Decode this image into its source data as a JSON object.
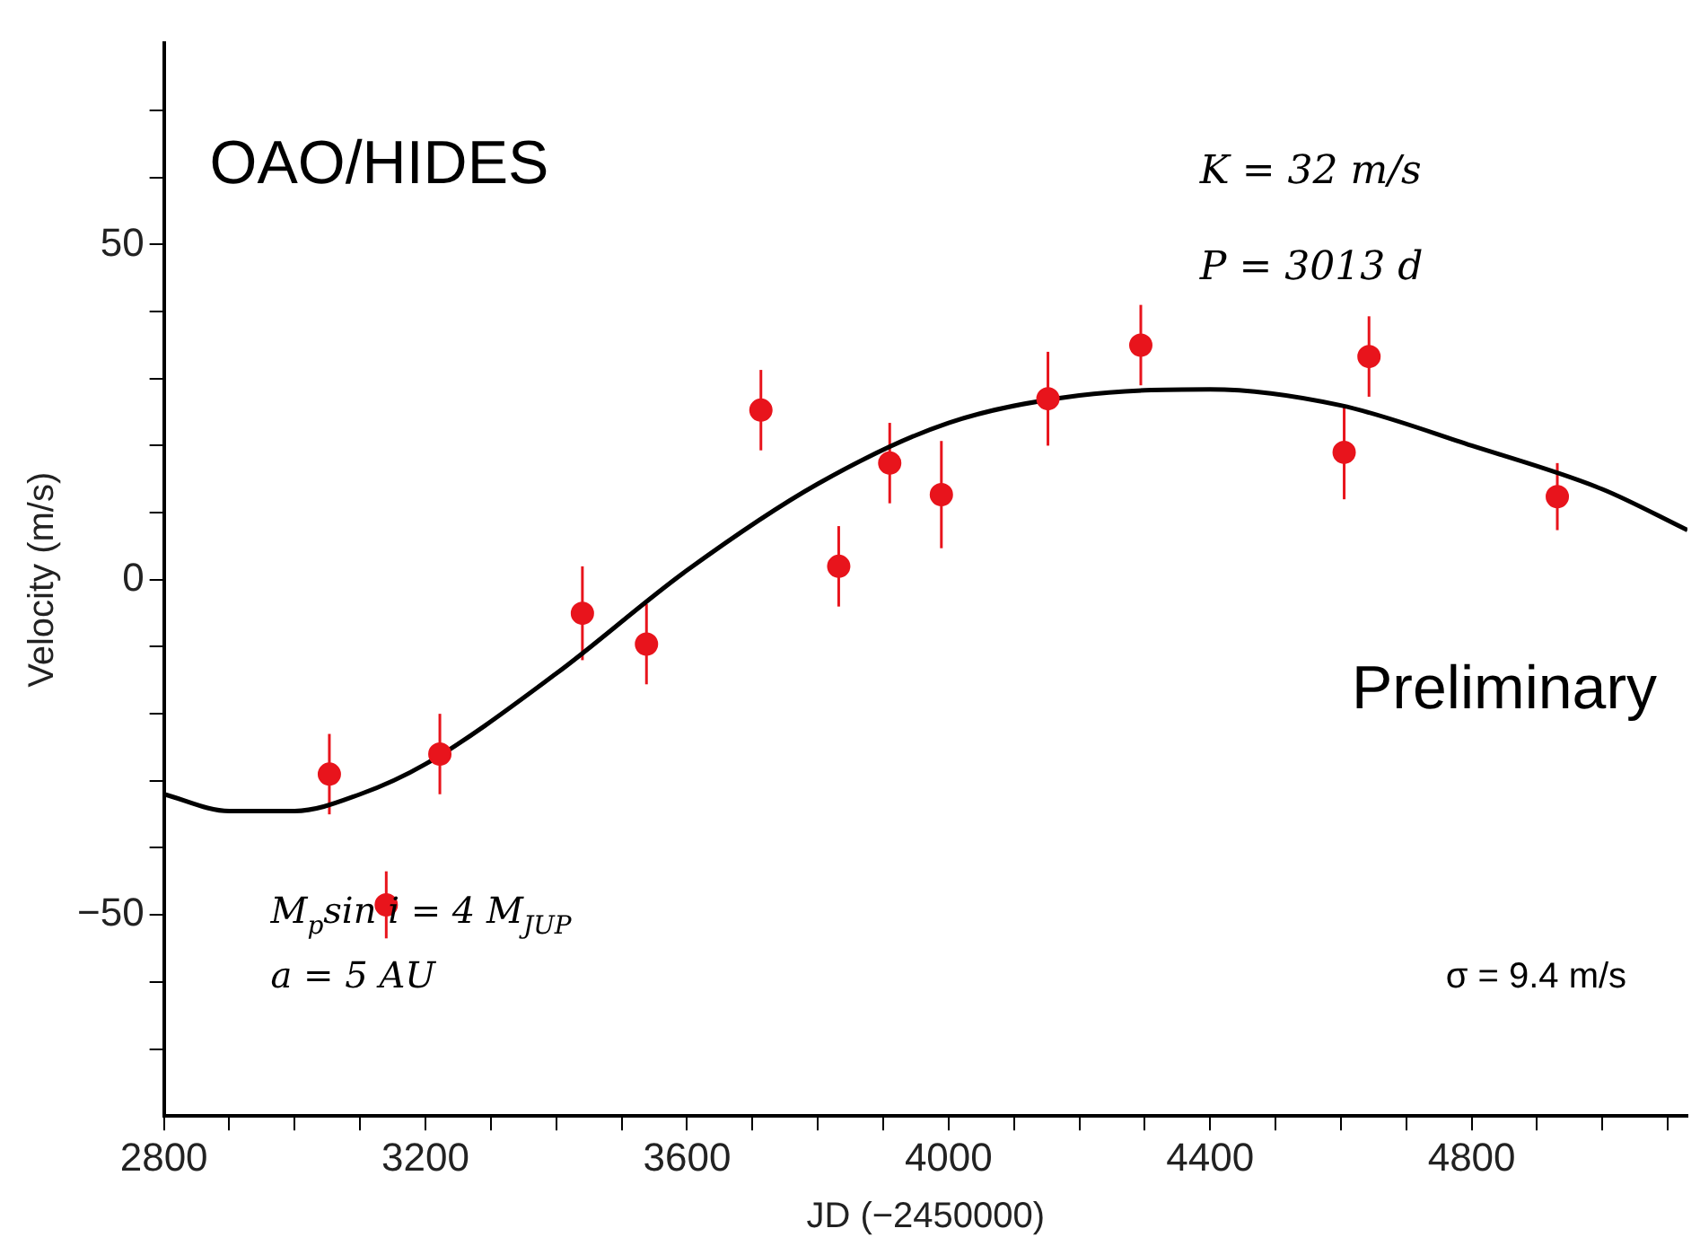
{
  "chart_data": {
    "type": "scatter",
    "xlabel": "JD (−2450000)",
    "ylabel": "Velocity (m/s)",
    "annotations": [
      "OAO/HIDES",
      "K = 32 m/s",
      "P = 3013 d",
      "Preliminary",
      "M$_{p}$sin i = 4 M$_{JUP}$",
      "a = 5 AU",
      "σ = 9.4 m/s"
    ],
    "marker": "circle",
    "grid": false,
    "legend": false,
    "xlim": [
      2800,
      5130
    ],
    "ylim": [
      -80,
      80
    ],
    "xticks": [
      2800,
      {
        "value": 2900,
        "label": null
      },
      {
        "value": 3000,
        "label": null
      },
      {
        "value": 3100,
        "label": null
      },
      3200,
      {
        "value": 3300,
        "label": null
      },
      {
        "value": 3400,
        "label": null
      },
      {
        "value": 3500,
        "label": null
      },
      3600,
      {
        "value": 3700,
        "label": null
      },
      {
        "value": 3800,
        "label": null
      },
      {
        "value": 3900,
        "label": null
      },
      4000,
      {
        "value": 4100,
        "label": null
      },
      {
        "value": 4200,
        "label": null
      },
      {
        "value": 4300,
        "label": null
      },
      4400,
      {
        "value": 4500,
        "label": null
      },
      {
        "value": 4600,
        "label": null
      },
      {
        "value": 4700,
        "label": null
      },
      4800,
      {
        "value": 4900,
        "label": null
      },
      {
        "value": 5000,
        "label": null
      },
      {
        "value": 5100,
        "label": null
      }
    ],
    "yticks": [
      {
        "value": -70,
        "label": null
      },
      {
        "value": -60,
        "label": null
      },
      {
        "value": -50,
        "label": "−50"
      },
      {
        "value": -40,
        "label": null
      },
      {
        "value": -30,
        "label": null
      },
      {
        "value": -20,
        "label": null
      },
      {
        "value": -10,
        "label": null
      },
      0,
      {
        "value": 10,
        "label": null
      },
      {
        "value": 20,
        "label": null
      },
      {
        "value": 30,
        "label": null
      },
      {
        "value": 40,
        "label": null
      },
      50,
      {
        "value": 60,
        "label": null
      },
      {
        "value": 70,
        "label": null
      }
    ],
    "series": [
      {
        "color": "#e8141c",
        "x": [
          3053,
          3140,
          3222,
          3440,
          3538,
          3713,
          3832,
          3910,
          3989,
          4152,
          4294,
          4605,
          4643,
          4931
        ],
        "values": [
          -29,
          -48.5,
          -26,
          -5,
          -9.6,
          25.3,
          2,
          17.4,
          12.7,
          27,
          35,
          19,
          33.3,
          12.4
        ],
        "errors": [
          6,
          5,
          6,
          7,
          6,
          6,
          6,
          6,
          8,
          7,
          6,
          7,
          6,
          5
        ]
      },
      {
        "type": "line",
        "color": "#000000",
        "marker": "none",
        "x": [
          2800,
          2900,
          3000,
          3100,
          3200,
          3400,
          3600,
          3800,
          4000,
          4200,
          4400,
          4600,
          4800,
          5000,
          5130
        ],
        "values": [
          -32,
          -34.5,
          -34.5,
          -32,
          -27.5,
          -14,
          1.4,
          14.3,
          23.4,
          27.5,
          28.4,
          26,
          20,
          13.5,
          7.4
        ]
      }
    ]
  }
}
